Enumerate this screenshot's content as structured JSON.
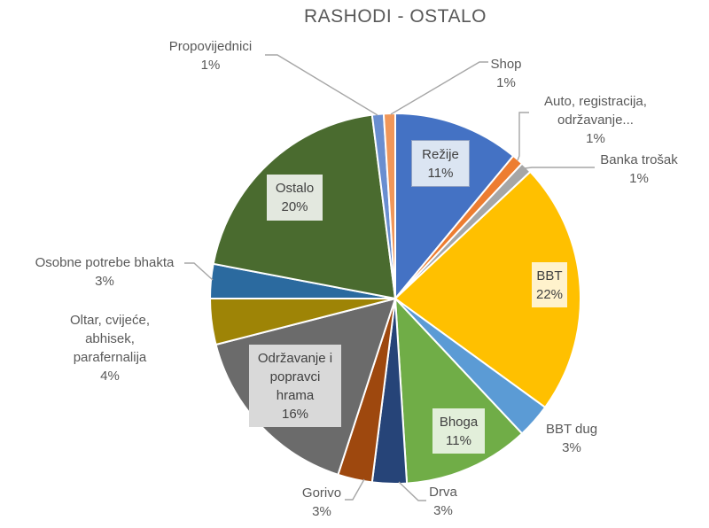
{
  "title": "RASHODI - OSTALO",
  "chart_data": {
    "type": "pie",
    "title": "RASHODI - OSTALO",
    "values_unit": "percent",
    "start_angle_deg": 0,
    "direction": "clockwise",
    "legend": "none",
    "slices": [
      {
        "id": "rezije",
        "name": "Režije",
        "value": 11,
        "pct_label": "11%",
        "color": "#4472C4",
        "label_placement": "inside-box",
        "label_box_fill": "#DBE5F2",
        "label_box_border": "#8FA0C3"
      },
      {
        "id": "auto",
        "name": "Auto, registracija, održavanje...",
        "value": 1,
        "pct_label": "1%",
        "color": "#ED7D31",
        "label_placement": "outside-leader"
      },
      {
        "id": "banka-trosak",
        "name": "Banka trošak",
        "value": 1,
        "pct_label": "1%",
        "color": "#A6A6A6",
        "label_placement": "outside-leader"
      },
      {
        "id": "bbt",
        "name": "BBT",
        "value": 22,
        "pct_label": "22%",
        "color": "#FFC000",
        "label_placement": "inside-box",
        "label_box_fill": "#FFF2CC"
      },
      {
        "id": "bbt-dug",
        "name": "BBT dug",
        "value": 3,
        "pct_label": "3%",
        "color": "#5B9BD5",
        "label_placement": "outside"
      },
      {
        "id": "bhoga",
        "name": "Bhoga",
        "value": 11,
        "pct_label": "11%",
        "color": "#70AD47",
        "label_placement": "inside-box",
        "label_box_fill": "#E2EFDA"
      },
      {
        "id": "drva",
        "name": "Drva",
        "value": 3,
        "pct_label": "3%",
        "color": "#264478",
        "label_placement": "outside-leader"
      },
      {
        "id": "gorivo",
        "name": "Gorivo",
        "value": 3,
        "pct_label": "3%",
        "color": "#9E480E",
        "label_placement": "outside-leader"
      },
      {
        "id": "odrzavanje",
        "name": "Održavanje i popravci hrama",
        "value": 16,
        "pct_label": "16%",
        "color": "#6B6B6B",
        "label_placement": "inside-box",
        "label_box_fill": "#D9D9D9"
      },
      {
        "id": "oltar",
        "name": "Oltar, cvijeće, abhisek, parafernalija",
        "value": 4,
        "pct_label": "4%",
        "color": "#9E8406",
        "label_placement": "outside"
      },
      {
        "id": "osobne",
        "name": "Osobne potrebe bhakta",
        "value": 3,
        "pct_label": "3%",
        "color": "#2B6A9F",
        "label_placement": "outside-leader"
      },
      {
        "id": "ostalo",
        "name": "Ostalo",
        "value": 20,
        "pct_label": "20%",
        "color": "#4A6B2F",
        "label_placement": "inside-box",
        "label_box_fill": "#E3E8DF"
      },
      {
        "id": "propovijednici",
        "name": "Propovijednici",
        "value": 1,
        "pct_label": "1%",
        "color": "#698ED0",
        "label_placement": "outside-leader"
      },
      {
        "id": "shop",
        "name": "Shop",
        "value": 1,
        "pct_label": "1%",
        "color": "#F0975A",
        "label_placement": "outside-leader"
      }
    ]
  },
  "colors": {
    "background": "#FFFFFF",
    "title_text": "#595959",
    "outside_label_text": "#595959",
    "inside_label_text": "#404040",
    "leader_line": "#A6A6A6",
    "slice_border": "#FFFFFF"
  }
}
